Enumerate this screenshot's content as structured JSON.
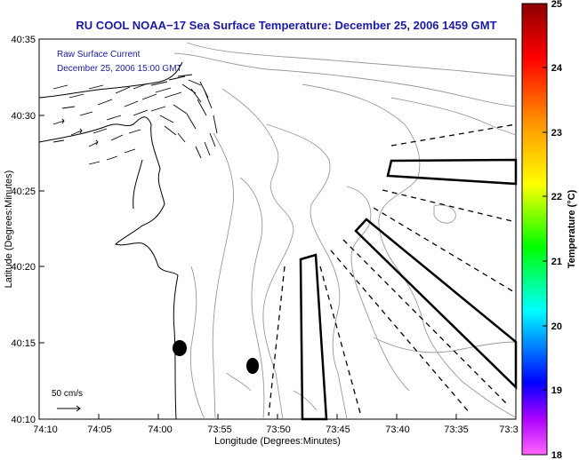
{
  "title": "RU COOL  NOAA−17  Sea Surface Temperature:  December 25, 2006 1459 GMT",
  "legend": {
    "line1": "Raw Surface Current",
    "line2": "December 25, 2006 15:00 GMT"
  },
  "scale_label": "50 cm/s",
  "axes": {
    "xlabel": "Longitude (Degrees:Minutes)",
    "ylabel": "Latitude (Degrees:Minutes)",
    "xticks": [
      "74:10",
      "74:05",
      "74:00",
      "73:55",
      "73:50",
      "73:45",
      "73:40",
      "73:35",
      "73:3"
    ],
    "yticks": [
      "40:35",
      "40:30",
      "40:25",
      "40:20",
      "40:15",
      "40:10"
    ]
  },
  "colorbar": {
    "label": "Temperature (°C)",
    "ticks": [
      "25",
      "24",
      "23",
      "22",
      "21",
      "20",
      "19",
      "18"
    ],
    "colors": [
      "#b00000",
      "#ff0000",
      "#ff8800",
      "#ffff00",
      "#00ff00",
      "#00ffff",
      "#0000ff",
      "#ff44ff"
    ]
  },
  "colors": {
    "title": "#1a1aa6",
    "legend_text": "#1a1aa6",
    "contour": "#999999",
    "frame": "#000000"
  }
}
